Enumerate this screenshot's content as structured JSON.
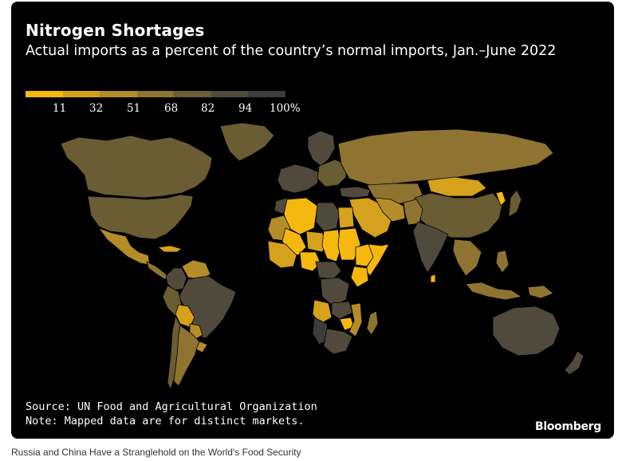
{
  "header": {
    "title": "Nitrogen Shortages",
    "subtitle": "Actual imports as a percent of the country’s normal imports, Jan.–June 2022"
  },
  "legend": {
    "ticks": [
      "11",
      "32",
      "51",
      "68",
      "82",
      "94",
      "100%"
    ],
    "colors": [
      "#f5b80f",
      "#d6a11c",
      "#b48c28",
      "#8e7430",
      "#6a5c33",
      "#4f4a3c",
      "#3c3c3c"
    ]
  },
  "footer": {
    "source": "Source: UN Food and Agricultural Organization",
    "note": "Note: Mapped data are for distinct markets.",
    "brand": "Bloomberg"
  },
  "caption": "Russia and China Have a Stranglehold on the World's Food Security",
  "map_regions": [
    {
      "name": "canada",
      "bucket": 5
    },
    {
      "name": "greenland",
      "bucket": 5
    },
    {
      "name": "usa",
      "bucket": 5
    },
    {
      "name": "mexico",
      "bucket": 3
    },
    {
      "name": "central-america",
      "bucket": 4
    },
    {
      "name": "cuba",
      "bucket": 2
    },
    {
      "name": "colombia",
      "bucket": 6
    },
    {
      "name": "venezuela",
      "bucket": 3
    },
    {
      "name": "brazil",
      "bucket": 6
    },
    {
      "name": "peru",
      "bucket": 5
    },
    {
      "name": "bolivia",
      "bucket": 2
    },
    {
      "name": "paraguay",
      "bucket": 3
    },
    {
      "name": "chile",
      "bucket": 5
    },
    {
      "name": "argentina",
      "bucket": 4
    },
    {
      "name": "uruguay",
      "bucket": 3
    },
    {
      "name": "western-europe",
      "bucket": 6
    },
    {
      "name": "scandinavia",
      "bucket": 6
    },
    {
      "name": "eastern-europe",
      "bucket": 5
    },
    {
      "name": "russia",
      "bucket": 4
    },
    {
      "name": "kazakhstan",
      "bucket": 4
    },
    {
      "name": "mongolia",
      "bucket": 2
    },
    {
      "name": "china",
      "bucket": 5
    },
    {
      "name": "korea",
      "bucket": 1
    },
    {
      "name": "japan",
      "bucket": 5
    },
    {
      "name": "turkey",
      "bucket": 6
    },
    {
      "name": "middle-east",
      "bucket": 2
    },
    {
      "name": "iran",
      "bucket": 3
    },
    {
      "name": "afghanistan-pakistan",
      "bucket": 4
    },
    {
      "name": "india",
      "bucket": 6
    },
    {
      "name": "sri-lanka",
      "bucket": 1
    },
    {
      "name": "southeast-asia",
      "bucket": 4
    },
    {
      "name": "indonesia",
      "bucket": 4
    },
    {
      "name": "philippines",
      "bucket": 4
    },
    {
      "name": "png",
      "bucket": 4
    },
    {
      "name": "australia",
      "bucket": 6
    },
    {
      "name": "new-zealand",
      "bucket": 6
    },
    {
      "name": "morocco",
      "bucket": 6
    },
    {
      "name": "algeria",
      "bucket": 1
    },
    {
      "name": "libya",
      "bucket": 6
    },
    {
      "name": "egypt",
      "bucket": 2
    },
    {
      "name": "mauritania",
      "bucket": 3
    },
    {
      "name": "mali",
      "bucket": 1
    },
    {
      "name": "niger",
      "bucket": 2
    },
    {
      "name": "chad",
      "bucket": 1
    },
    {
      "name": "sudan",
      "bucket": 1
    },
    {
      "name": "west-africa",
      "bucket": 2
    },
    {
      "name": "nigeria",
      "bucket": 1
    },
    {
      "name": "ethiopia",
      "bucket": 1
    },
    {
      "name": "somalia",
      "bucket": 1
    },
    {
      "name": "kenya",
      "bucket": 1
    },
    {
      "name": "central-africa",
      "bucket": 6
    },
    {
      "name": "drc",
      "bucket": 6
    },
    {
      "name": "angola",
      "bucket": 2
    },
    {
      "name": "zambia",
      "bucket": 6
    },
    {
      "name": "zimbabwe",
      "bucket": 1
    },
    {
      "name": "mozambique",
      "bucket": 3
    },
    {
      "name": "namibia",
      "bucket": 7
    },
    {
      "name": "south-africa",
      "bucket": 6
    },
    {
      "name": "madagascar",
      "bucket": 4
    }
  ]
}
